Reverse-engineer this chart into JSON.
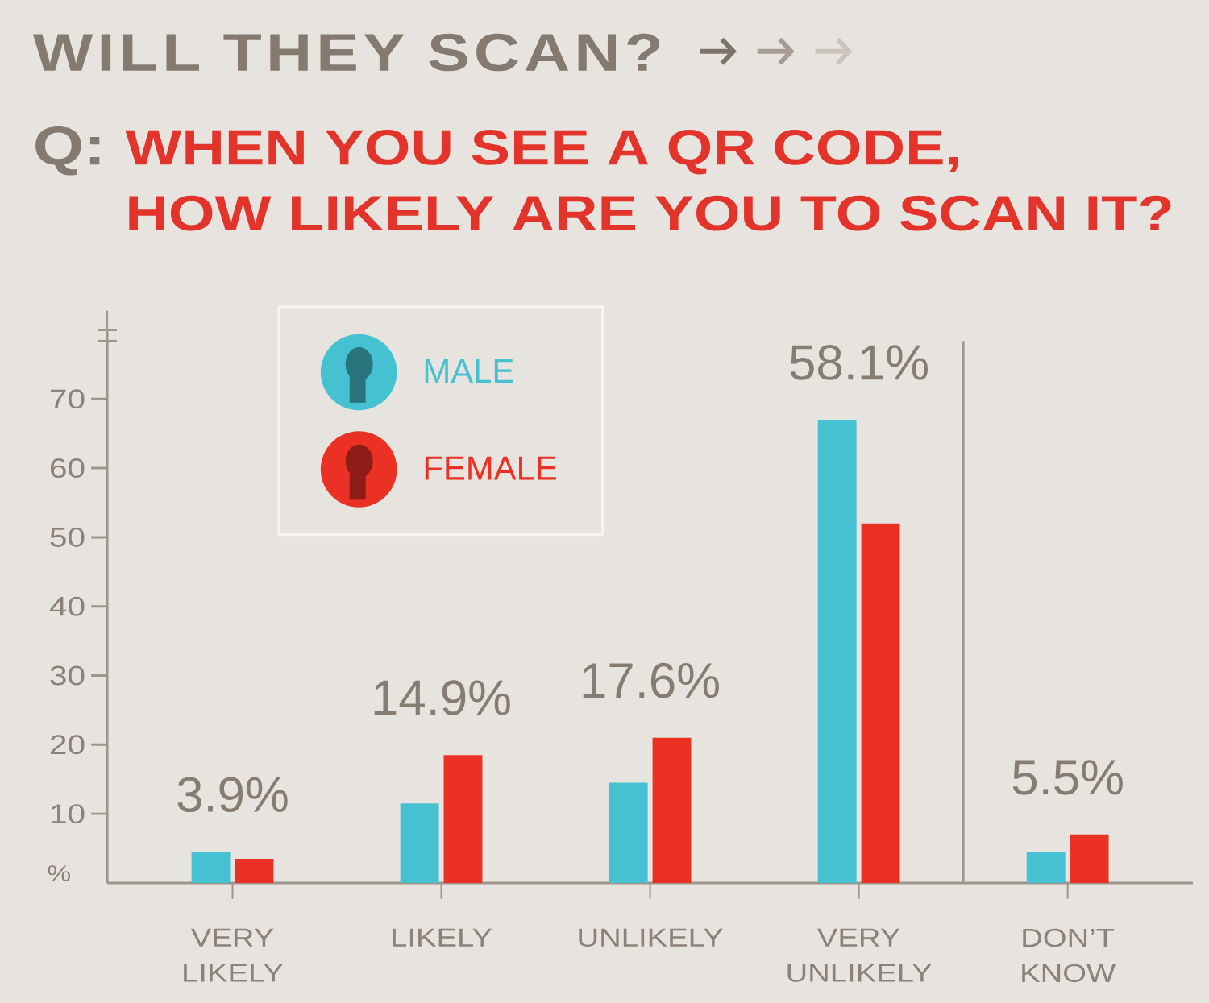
{
  "chart_data": {
    "type": "bar",
    "title": "WILL THEY SCAN?",
    "subtitle": "WHEN YOU SEE A QR CODE, HOW LIKELY ARE YOU TO SCAN IT?",
    "ylabel": "%",
    "categories": [
      "VERY LIKELY",
      "LIKELY",
      "UNLIKELY",
      "VERY UNLIKELY",
      "DON’T KNOW"
    ],
    "series": [
      {
        "name": "MALE",
        "color": "#45c1d1",
        "values": [
          4.5,
          11.5,
          14.5,
          67,
          4.5
        ]
      },
      {
        "name": "FEMALE",
        "color": "#ea3124",
        "values": [
          3.5,
          18.5,
          21,
          52,
          7
        ]
      }
    ],
    "ylim": [
      0,
      80
    ],
    "yticks": [
      10,
      20,
      30,
      40,
      50,
      60,
      70
    ],
    "annotations": [
      "Q:",
      "3.9%",
      "14.9%",
      "17.6%",
      "58.1%",
      "5.5%"
    ],
    "legend": "top left"
  }
}
